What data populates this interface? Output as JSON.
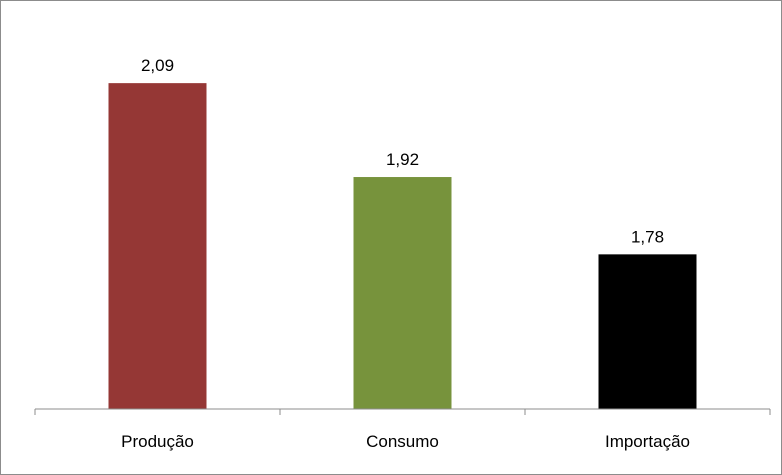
{
  "chart_data": {
    "type": "bar",
    "categories": [
      "Produção",
      "Consumo",
      "Importação"
    ],
    "values": [
      2.09,
      1.92,
      1.78
    ],
    "data_labels": [
      "2,09",
      "1,92",
      "1,78"
    ],
    "colors": [
      "#953735",
      "#77933c",
      "#000000"
    ],
    "title": "",
    "xlabel": "",
    "ylabel": "",
    "ylim": [
      1.5,
      2.15
    ],
    "grid": false,
    "legend": "none"
  }
}
